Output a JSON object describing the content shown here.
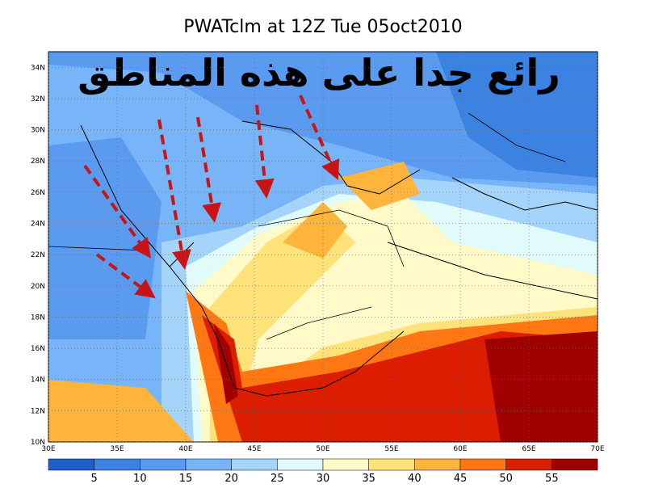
{
  "title": "PWATclm at 12Z Tue 05oct2010",
  "annotation": "رائع جدا على هذه المناطق",
  "lat_labels": [
    "10N",
    "12N",
    "14N",
    "16N",
    "18N",
    "20N",
    "22N",
    "24N",
    "26N",
    "28N",
    "30N",
    "32N",
    "34N"
  ],
  "lon_labels": [
    "30E",
    "35E",
    "40E",
    "45E",
    "50E",
    "55E",
    "60E",
    "65E",
    "70E"
  ],
  "colorbar": {
    "ticks": [
      5,
      10,
      15,
      20,
      25,
      30,
      35,
      40,
      45,
      50,
      55
    ],
    "colors": [
      "#1f60c8",
      "#3c82e0",
      "#5a9bf0",
      "#78b4f8",
      "#a5d4fb",
      "#e1fafa",
      "#fffac8",
      "#ffe27a",
      "#ffb43c",
      "#ff7814",
      "#dc1e00",
      "#a00000"
    ]
  }
}
